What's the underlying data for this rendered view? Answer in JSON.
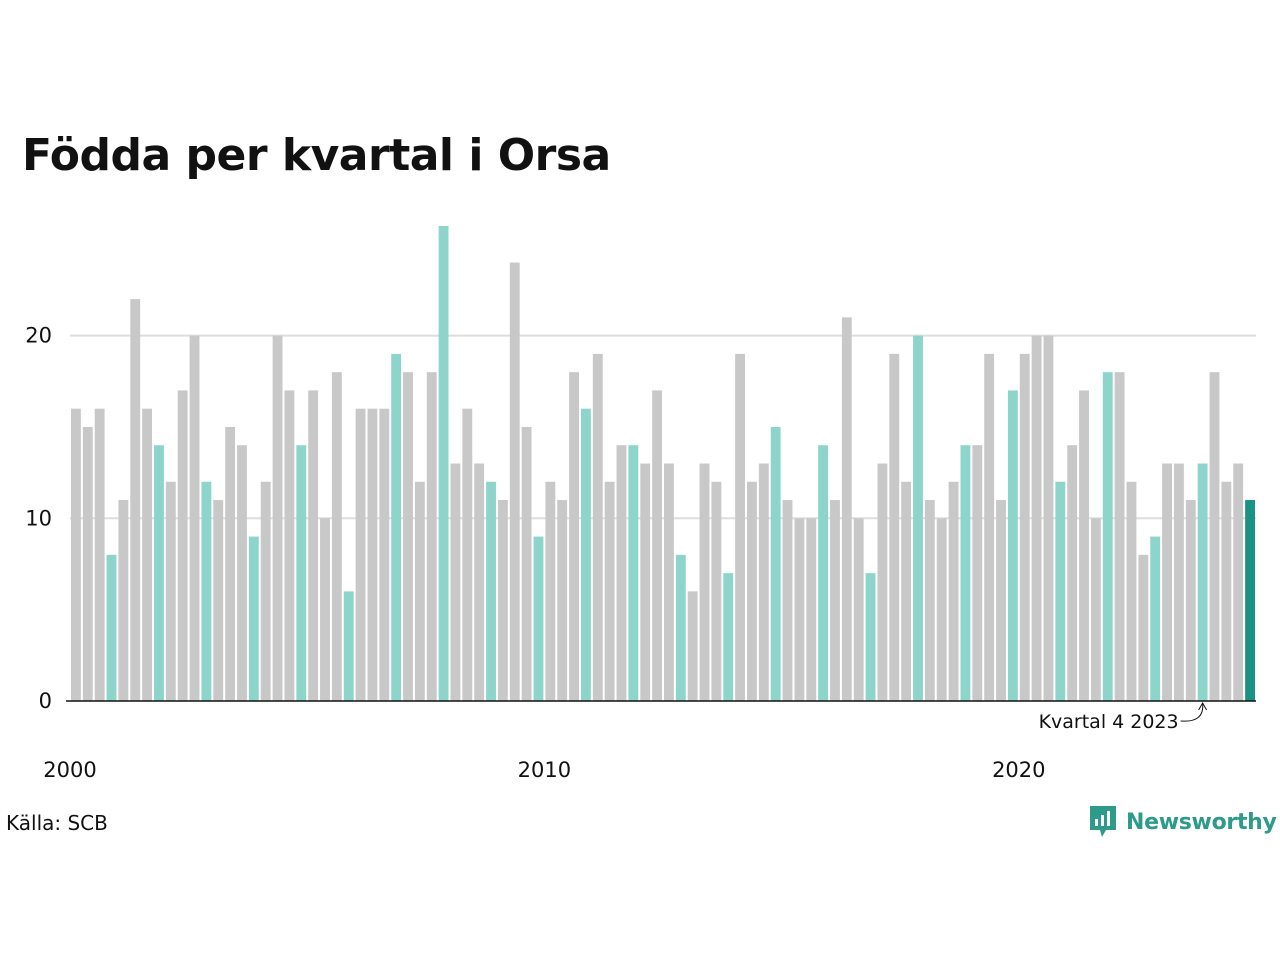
{
  "title": "Födda per kvartal i Orsa",
  "source": "Källa: SCB",
  "brand": {
    "name": "Newsworthy",
    "icon": "newsworthy-logo-icon"
  },
  "colors": {
    "default_bar": "#c8c8c8",
    "q4_bar": "#8dd5cb",
    "latest_bar": "#1a9384",
    "gridline": "#dddddd",
    "axis": "#111111",
    "brand": "#2e9a8a"
  },
  "chart_data": {
    "type": "bar",
    "title": "Födda per kvartal i Orsa",
    "xlabel": "",
    "ylabel": "",
    "ylim": [
      0,
      26
    ],
    "yticks": [
      0,
      10,
      20
    ],
    "xtick_labels": [
      "2000",
      "2010",
      "2020"
    ],
    "grid": true,
    "highlight": "Quarter 4 of each year in light teal; latest quarter in dark teal",
    "annotation": {
      "text": "Kvartal 4 2023",
      "target": "2023 Q4"
    },
    "categories": [
      "2000 Q1",
      "2000 Q2",
      "2000 Q3",
      "2000 Q4",
      "2001 Q1",
      "2001 Q2",
      "2001 Q3",
      "2001 Q4",
      "2002 Q1",
      "2002 Q2",
      "2002 Q3",
      "2002 Q4",
      "2003 Q1",
      "2003 Q2",
      "2003 Q3",
      "2003 Q4",
      "2004 Q1",
      "2004 Q2",
      "2004 Q3",
      "2004 Q4",
      "2005 Q1",
      "2005 Q2",
      "2005 Q3",
      "2005 Q4",
      "2006 Q1",
      "2006 Q2",
      "2006 Q3",
      "2006 Q4",
      "2007 Q1",
      "2007 Q2",
      "2007 Q3",
      "2007 Q4",
      "2008 Q1",
      "2008 Q2",
      "2008 Q3",
      "2008 Q4",
      "2009 Q1",
      "2009 Q2",
      "2009 Q3",
      "2009 Q4",
      "2010 Q1",
      "2010 Q2",
      "2010 Q3",
      "2010 Q4",
      "2011 Q1",
      "2011 Q2",
      "2011 Q3",
      "2011 Q4",
      "2012 Q1",
      "2012 Q2",
      "2012 Q3",
      "2012 Q4",
      "2013 Q1",
      "2013 Q2",
      "2013 Q3",
      "2013 Q4",
      "2014 Q1",
      "2014 Q2",
      "2014 Q3",
      "2014 Q4",
      "2015 Q1",
      "2015 Q2",
      "2015 Q3",
      "2015 Q4",
      "2016 Q1",
      "2016 Q2",
      "2016 Q3",
      "2016 Q4",
      "2017 Q1",
      "2017 Q2",
      "2017 Q3",
      "2017 Q4",
      "2018 Q1",
      "2018 Q2",
      "2018 Q3",
      "2018 Q4",
      "2019 Q1",
      "2019 Q2",
      "2019 Q3",
      "2019 Q4",
      "2020 Q1",
      "2020 Q2",
      "2020 Q3",
      "2020 Q4",
      "2021 Q1",
      "2021 Q2",
      "2021 Q3",
      "2021 Q4",
      "2022 Q1",
      "2022 Q2",
      "2022 Q3",
      "2022 Q4",
      "2023 Q1",
      "2023 Q2",
      "2023 Q3",
      "2023 Q4",
      "2024 Q1",
      "2024 Q2",
      "2024 Q3",
      "2024 Q4"
    ],
    "values": [
      16,
      15,
      16,
      8,
      11,
      22,
      16,
      14,
      12,
      17,
      20,
      12,
      11,
      15,
      14,
      9,
      12,
      20,
      17,
      14,
      17,
      10,
      18,
      6,
      16,
      16,
      16,
      19,
      18,
      12,
      18,
      26,
      13,
      16,
      13,
      12,
      11,
      24,
      15,
      9,
      12,
      11,
      18,
      16,
      19,
      12,
      14,
      14,
      13,
      17,
      13,
      8,
      6,
      13,
      12,
      7,
      19,
      12,
      13,
      15,
      11,
      10,
      10,
      14,
      11,
      21,
      10,
      7,
      13,
      19,
      12,
      20,
      11,
      10,
      12,
      14,
      14,
      19,
      11,
      17,
      19,
      20,
      20,
      12,
      14,
      17,
      10,
      18,
      18,
      12,
      8,
      9,
      13,
      13,
      11,
      13,
      18,
      12,
      13,
      11
    ]
  }
}
